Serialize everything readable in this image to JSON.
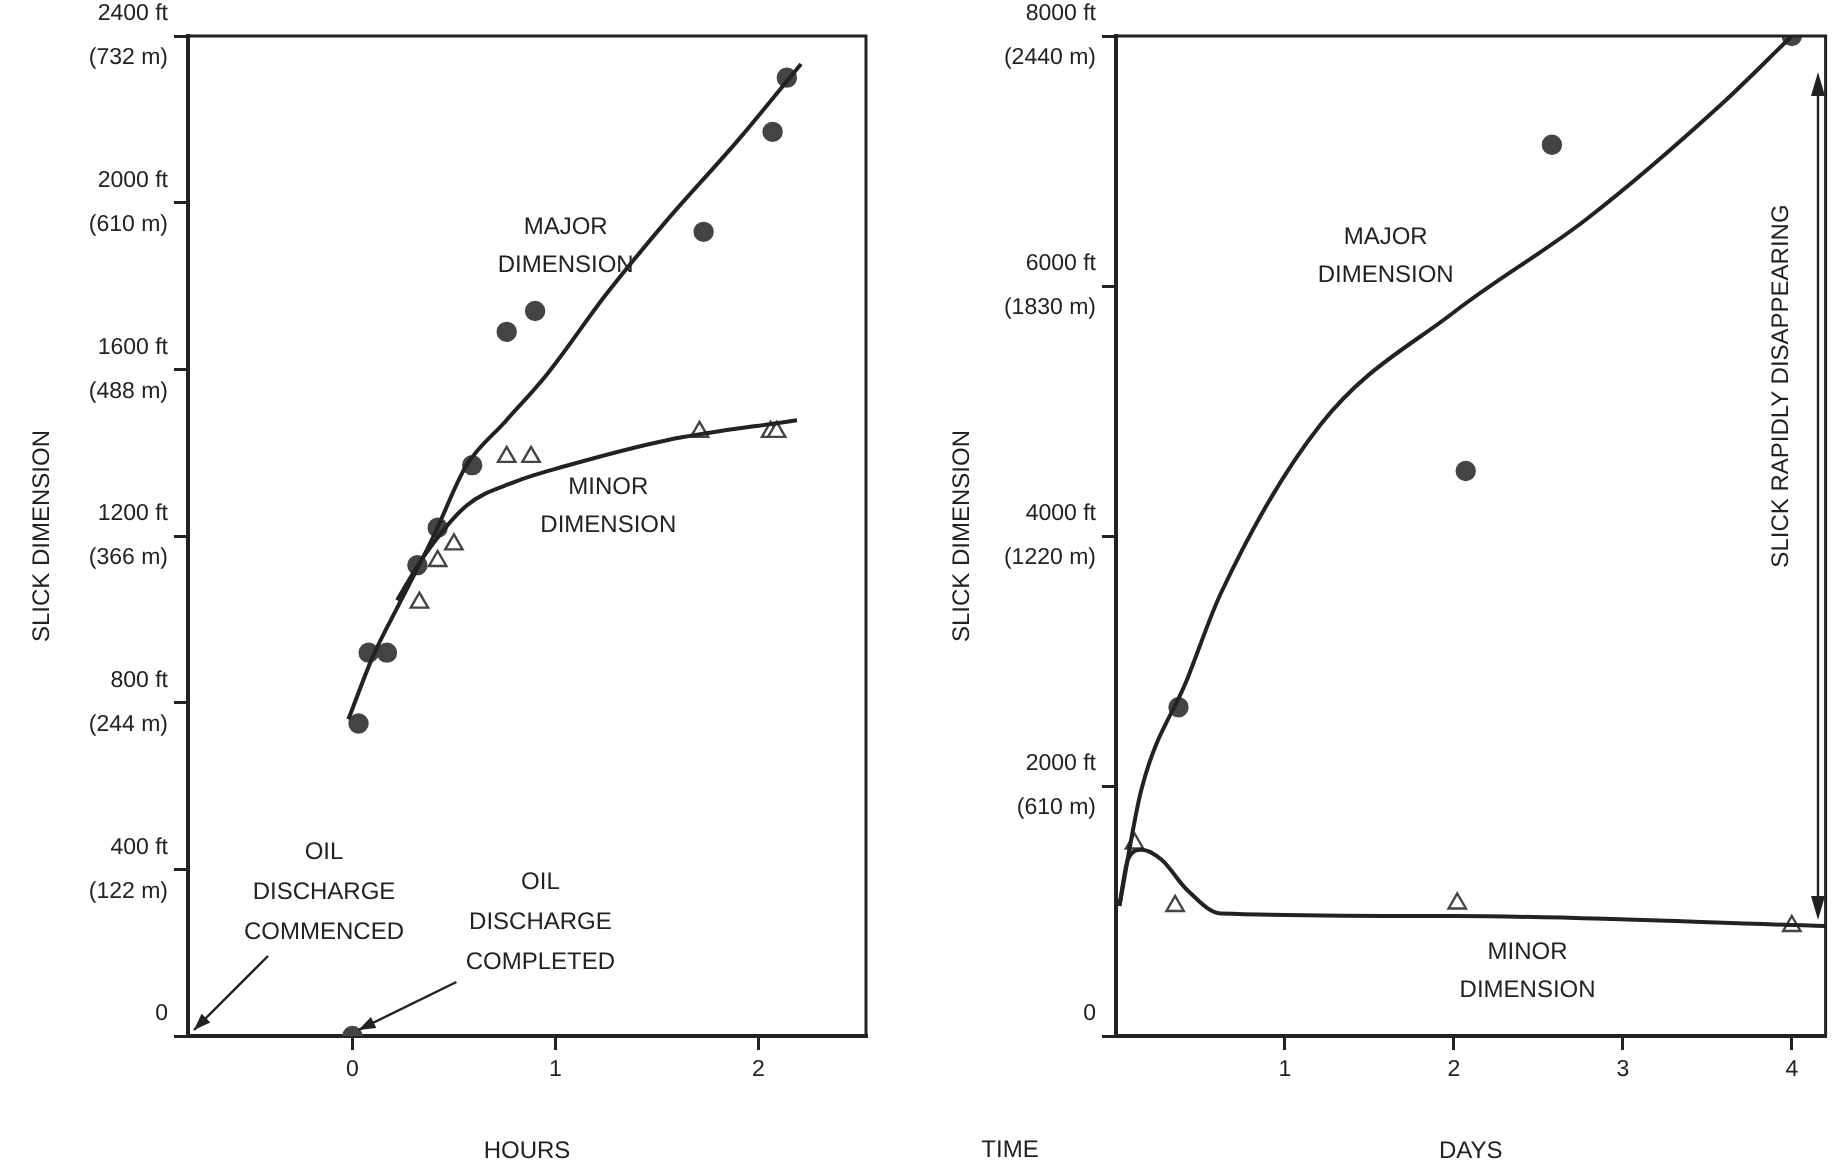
{
  "chart_data": [
    {
      "type": "scatter",
      "xlabel": "HOURS",
      "y2label": "SLICK DIMENSION",
      "xlim": [
        -0.81,
        2.53
      ],
      "xticks": [
        0,
        1,
        2
      ],
      "ylim": [
        0,
        2400
      ],
      "line_style": "solid",
      "yticks": [
        {
          "value": 0,
          "label": "0"
        },
        {
          "value": 400,
          "label": "400 ft"
        },
        {
          "value": 800,
          "label": "800 ft"
        },
        {
          "value": 1200,
          "label": "1200 ft"
        },
        {
          "value": 1600,
          "label": "1600 ft"
        },
        {
          "value": 2000,
          "label": "2000 ft"
        },
        {
          "value": 2400,
          "label": "2400 ft"
        }
      ],
      "y2lim": [
        0,
        732
      ],
      "y2ticks": [
        {
          "value": 122,
          "label": "(122 m)"
        },
        {
          "value": 244,
          "label": "(244 m)"
        },
        {
          "value": 366,
          "label": "(366 m)"
        },
        {
          "value": 488,
          "label": "(488 m)"
        },
        {
          "value": 610,
          "label": "(610 m)"
        },
        {
          "value": 732,
          "label": "(732 m)"
        }
      ],
      "series": [
        {
          "name": "MAJOR DIMENSION",
          "type": "line",
          "color": "#222222",
          "marker": "none",
          "x": [
            -0.02,
            0.1,
            0.24,
            0.4,
            0.56,
            0.75,
            0.96,
            1.25,
            1.55,
            1.9,
            2.21
          ],
          "values": [
            760,
            910,
            1046,
            1200,
            1368,
            1473,
            1589,
            1780,
            1958,
            2150,
            2333
          ]
        },
        {
          "name": "MINOR DIMENSION",
          "type": "line",
          "color": "#222222",
          "marker": "none",
          "x": [
            0.22,
            0.35,
            0.56,
            0.8,
            1.05,
            1.55,
            2.19
          ],
          "values": [
            1046,
            1150,
            1272,
            1330,
            1368,
            1430,
            1478
          ]
        },
        {
          "type": "scatter",
          "color": "#444444",
          "marker": "circle",
          "x": [
            0,
            0.03,
            0.08,
            0.17,
            0.32,
            0.42,
            0.59,
            0.76,
            0.9,
            1.73,
            2.07,
            2.14
          ],
          "values": [
            0,
            750,
            920,
            920,
            1130,
            1220,
            1370,
            1690,
            1740,
            1930,
            2170,
            2300
          ]
        },
        {
          "type": "scatter",
          "color": "#444444",
          "marker": "triangle",
          "x": [
            0.33,
            0.42,
            0.5,
            0.76,
            0.88,
            1.71,
            2.06,
            2.09
          ],
          "values": [
            1040,
            1140,
            1180,
            1390,
            1390,
            1450,
            1450,
            1450
          ]
        }
      ],
      "annotations": [
        "OIL DISCHARGE COMMENCED",
        {
          "text": "OIL DISCHARGE COMPLETED",
          "x": 0,
          "y": 0
        }
      ]
    },
    {
      "type": "scatter",
      "xlabel": "DAYS",
      "y2label": "SLICK DIMENSION",
      "xlim": [
        0,
        4.2
      ],
      "xticks": [
        1,
        2,
        3,
        4
      ],
      "ylim": [
        0,
        8000
      ],
      "line_style": "solid",
      "yticks": [
        {
          "value": 0,
          "label": "0"
        },
        {
          "value": 2000,
          "label": "2000 ft"
        },
        {
          "value": 4000,
          "label": "4000 ft"
        },
        {
          "value": 6000,
          "label": "6000 ft"
        },
        {
          "value": 8000,
          "label": "8000 ft"
        }
      ],
      "y2lim": [
        0,
        2440
      ],
      "y2ticks": [
        {
          "value": 610,
          "label": "(610 m)"
        },
        {
          "value": 1220,
          "label": "(1220 m)"
        },
        {
          "value": 1830,
          "label": "(1830 m)"
        },
        {
          "value": 2440,
          "label": "(2440 m)"
        }
      ],
      "series": [
        {
          "name": "MAJOR DIMENSION",
          "type": "line",
          "color": "#222222",
          "marker": "none",
          "x": [
            0.02,
            0.15,
            0.42,
            0.62,
            1.21,
            2.0,
            2.79,
            3.58,
            4.0
          ],
          "values": [
            1040,
            1970,
            2850,
            3540,
            4890,
            5790,
            6540,
            7450,
            8000
          ]
        },
        {
          "name": "MINOR DIMENSION",
          "type": "line",
          "color": "#222222",
          "marker": "none",
          "x": [
            0.02,
            0.07,
            0.15,
            0.27,
            0.42,
            0.62,
            2.0,
            4.2
          ],
          "values": [
            1040,
            1410,
            1490,
            1410,
            1170,
            980,
            960,
            880
          ]
        },
        {
          "type": "scatter",
          "color": "#444444",
          "marker": "circle",
          "x": [
            0.37,
            2.07,
            2.58,
            4.0
          ],
          "values": [
            2630,
            4520,
            7130,
            8000
          ]
        },
        {
          "type": "scatter",
          "color": "#444444",
          "marker": "triangle",
          "x": [
            0.11,
            0.35,
            2.02,
            4.0
          ],
          "values": [
            1540,
            1040,
            1060,
            880
          ]
        }
      ],
      "annotations": [
        "SLICK RAPIDLY DISAPPEARING",
        "TIME"
      ]
    }
  ]
}
